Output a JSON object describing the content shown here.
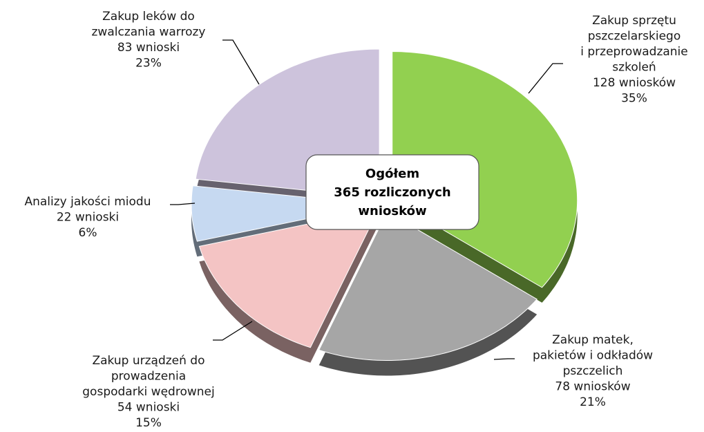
{
  "chart_data": {
    "type": "pie",
    "categories": [
      [
        "Zakup sprzętu",
        "pszczelarskiego",
        "i przeprowadzanie",
        "szkoleń"
      ],
      [
        "Zakup matek,",
        "pakietów i odkładów",
        "pszczelich"
      ],
      [
        "Zakup urządzeń do",
        "prowadzenia",
        "gospodarki wędrownej"
      ],
      [
        "Analizy jakości miodu"
      ],
      [
        "Zakup leków do",
        "zwalczania warrozy"
      ]
    ],
    "values": [
      35,
      21,
      15,
      6,
      23
    ],
    "value_labels": [
      "35%",
      "21%",
      "15%",
      "6%",
      "23%"
    ],
    "counts": [
      128,
      78,
      54,
      22,
      83
    ],
    "count_labels": [
      "128 wniosków",
      "78 wniosków",
      "54 wnioski",
      "22 wnioski",
      "83 wnioski"
    ],
    "colors": [
      "#92d050",
      "#a6a6a6",
      "#f4c4c4",
      "#c6d9f1",
      "#cdc3dc"
    ],
    "center_label": [
      "Ogółem",
      "365 rozliczonych",
      "wniosków"
    ]
  }
}
